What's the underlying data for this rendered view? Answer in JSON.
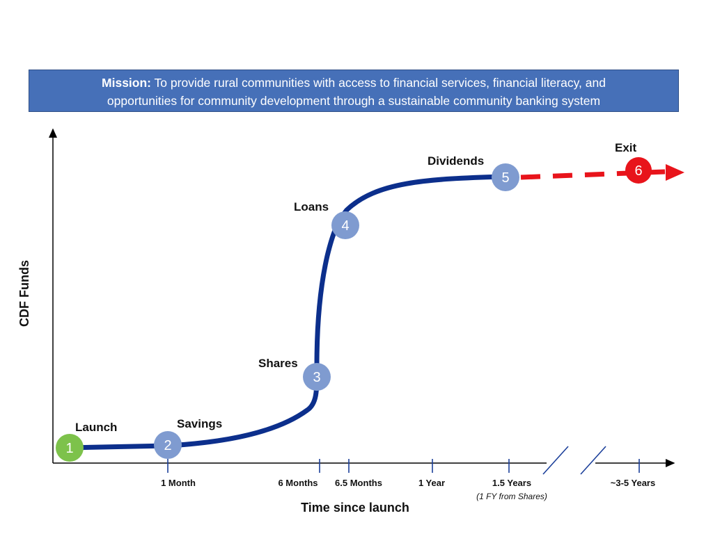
{
  "mission": {
    "label": "Mission:",
    "text_line1": "To provide rural communities with access to financial services, financial literacy, and",
    "text_line2": "opportunities for community development through a sustainable community banking system"
  },
  "axes": {
    "y_title": "CDF Funds",
    "x_title": "Time since launch"
  },
  "ticks": [
    {
      "label": "1 Month"
    },
    {
      "label": "6 Months"
    },
    {
      "label": "6.5 Months"
    },
    {
      "label": "1 Year"
    },
    {
      "label": "1.5 Years",
      "note": "(1 FY from Shares)"
    },
    {
      "label": "~3-5 Years"
    }
  ],
  "stages": [
    {
      "number": "1",
      "label": "Launch",
      "color": "#7dc24b"
    },
    {
      "number": "2",
      "label": "Savings",
      "color": "#7f9bd0"
    },
    {
      "number": "3",
      "label": "Shares",
      "color": "#7f9bd0"
    },
    {
      "number": "4",
      "label": "Loans",
      "color": "#7f9bd0"
    },
    {
      "number": "5",
      "label": "Dividends",
      "color": "#7f9bd0"
    },
    {
      "number": "6",
      "label": "Exit",
      "color": "#e8141b"
    }
  ],
  "colors": {
    "curve": "#0c2f8c",
    "exit_arrow": "#e8141b",
    "banner": "#4670b8"
  }
}
